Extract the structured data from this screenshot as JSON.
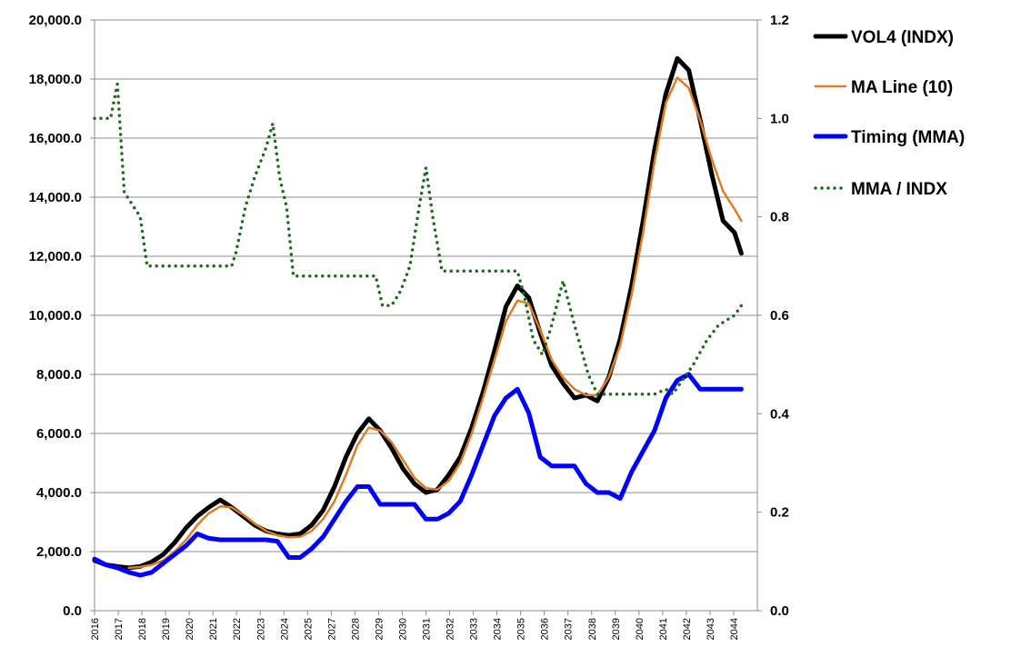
{
  "chart_data": {
    "type": "line",
    "title": "",
    "grid": true,
    "legend_position": "right",
    "x_ticks": [
      "2016",
      "2017",
      "2018",
      "2019",
      "2020",
      "2021",
      "2022",
      "2023",
      "2024",
      "2025",
      "2027",
      "2028",
      "2029",
      "2030",
      "2031",
      "2032",
      "2033",
      "2034",
      "2035",
      "2036",
      "2037",
      "2038",
      "2039",
      "2040",
      "2041",
      "2042",
      "2043",
      "2044"
    ],
    "y_left": {
      "min": 0,
      "max": 20000,
      "ticks": [
        "0.0",
        "2,000.0",
        "4,000.0",
        "6,000.0",
        "8,000.0",
        "10,000.0",
        "12,000.0",
        "14,000.0",
        "16,000.0",
        "18,000.0",
        "20,000.0"
      ]
    },
    "y_right": {
      "min": 0,
      "max": 1.2,
      "ticks": [
        "0.0",
        "0.2",
        "0.4",
        "0.6",
        "0.8",
        "1.0",
        "1.2"
      ]
    },
    "series": [
      {
        "name": "VOL4 (INDX)",
        "axis": "left",
        "style": "thick",
        "color": "#000000",
        "points": [
          [
            2016.0,
            1700
          ],
          [
            2016.5,
            1550
          ],
          [
            2017.0,
            1500
          ],
          [
            2017.5,
            1450
          ],
          [
            2018.0,
            1500
          ],
          [
            2018.5,
            1650
          ],
          [
            2019.0,
            1900
          ],
          [
            2019.5,
            2300
          ],
          [
            2020.0,
            2800
          ],
          [
            2020.5,
            3200
          ],
          [
            2021.0,
            3500
          ],
          [
            2021.5,
            3750
          ],
          [
            2022.0,
            3500
          ],
          [
            2022.5,
            3200
          ],
          [
            2023.0,
            2900
          ],
          [
            2023.5,
            2700
          ],
          [
            2024.0,
            2600
          ],
          [
            2024.5,
            2550
          ],
          [
            2025.0,
            2600
          ],
          [
            2025.5,
            2900
          ],
          [
            2026.0,
            3400
          ],
          [
            2026.5,
            4200
          ],
          [
            2027.0,
            5200
          ],
          [
            2027.5,
            6000
          ],
          [
            2028.0,
            6500
          ],
          [
            2028.5,
            6100
          ],
          [
            2029.0,
            5500
          ],
          [
            2029.5,
            4800
          ],
          [
            2030.0,
            4300
          ],
          [
            2030.5,
            4000
          ],
          [
            2031.0,
            4100
          ],
          [
            2031.5,
            4600
          ],
          [
            2032.0,
            5200
          ],
          [
            2032.5,
            6200
          ],
          [
            2033.0,
            7400
          ],
          [
            2033.5,
            8800
          ],
          [
            2034.0,
            10300
          ],
          [
            2034.5,
            11000
          ],
          [
            2035.0,
            10600
          ],
          [
            2035.5,
            9400
          ],
          [
            2036.0,
            8300
          ],
          [
            2036.5,
            7700
          ],
          [
            2037.0,
            7200
          ],
          [
            2037.5,
            7300
          ],
          [
            2038.0,
            7100
          ],
          [
            2038.5,
            7900
          ],
          [
            2039.0,
            9200
          ],
          [
            2039.5,
            11000
          ],
          [
            2040.0,
            13200
          ],
          [
            2040.5,
            15600
          ],
          [
            2041.0,
            17500
          ],
          [
            2041.5,
            18700
          ],
          [
            2042.0,
            18300
          ],
          [
            2042.5,
            16600
          ],
          [
            2043.0,
            14800
          ],
          [
            2043.5,
            13200
          ],
          [
            2044.0,
            12800
          ],
          [
            2044.3,
            12100
          ]
        ]
      },
      {
        "name": "MA Line (10)",
        "axis": "left",
        "style": "thin",
        "color": "#e07a24",
        "points": [
          [
            2017.5,
            1450
          ],
          [
            2018.0,
            1480
          ],
          [
            2018.5,
            1550
          ],
          [
            2019.0,
            1700
          ],
          [
            2019.5,
            2000
          ],
          [
            2020.0,
            2400
          ],
          [
            2020.5,
            2900
          ],
          [
            2021.0,
            3300
          ],
          [
            2021.5,
            3530
          ],
          [
            2022.0,
            3500
          ],
          [
            2022.5,
            3250
          ],
          [
            2023.0,
            2950
          ],
          [
            2023.5,
            2700
          ],
          [
            2024.0,
            2550
          ],
          [
            2024.5,
            2480
          ],
          [
            2025.0,
            2500
          ],
          [
            2025.5,
            2700
          ],
          [
            2026.0,
            3100
          ],
          [
            2026.5,
            3700
          ],
          [
            2027.0,
            4600
          ],
          [
            2027.5,
            5600
          ],
          [
            2028.0,
            6200
          ],
          [
            2028.5,
            6100
          ],
          [
            2029.0,
            5700
          ],
          [
            2029.5,
            5100
          ],
          [
            2030.0,
            4500
          ],
          [
            2030.5,
            4150
          ],
          [
            2031.0,
            4100
          ],
          [
            2031.5,
            4400
          ],
          [
            2032.0,
            5000
          ],
          [
            2032.5,
            6000
          ],
          [
            2033.0,
            7200
          ],
          [
            2033.5,
            8500
          ],
          [
            2034.0,
            9800
          ],
          [
            2034.5,
            10500
          ],
          [
            2035.0,
            10400
          ],
          [
            2035.5,
            9500
          ],
          [
            2036.0,
            8500
          ],
          [
            2036.5,
            7900
          ],
          [
            2037.0,
            7500
          ],
          [
            2037.5,
            7300
          ],
          [
            2038.0,
            7300
          ],
          [
            2038.5,
            7900
          ],
          [
            2039.0,
            9000
          ],
          [
            2039.5,
            10700
          ],
          [
            2040.0,
            12800
          ],
          [
            2040.5,
            15200
          ],
          [
            2041.0,
            17200
          ],
          [
            2041.5,
            18050
          ],
          [
            2042.0,
            17700
          ],
          [
            2042.5,
            16600
          ],
          [
            2043.0,
            15300
          ],
          [
            2043.5,
            14200
          ],
          [
            2044.0,
            13600
          ],
          [
            2044.3,
            13200
          ]
        ]
      },
      {
        "name": "Timing (MMA)",
        "axis": "left",
        "style": "thick",
        "color": "#0000ff",
        "points": [
          [
            2016.0,
            1750
          ],
          [
            2016.5,
            1550
          ],
          [
            2017.0,
            1450
          ],
          [
            2017.5,
            1300
          ],
          [
            2018.0,
            1200
          ],
          [
            2018.5,
            1300
          ],
          [
            2019.0,
            1600
          ],
          [
            2019.5,
            1900
          ],
          [
            2020.0,
            2200
          ],
          [
            2020.5,
            2600
          ],
          [
            2021.0,
            2450
          ],
          [
            2021.5,
            2400
          ],
          [
            2022.0,
            2400
          ],
          [
            2022.5,
            2400
          ],
          [
            2023.0,
            2400
          ],
          [
            2023.5,
            2400
          ],
          [
            2024.0,
            2350
          ],
          [
            2024.5,
            1800
          ],
          [
            2025.0,
            1800
          ],
          [
            2025.5,
            2100
          ],
          [
            2026.0,
            2500
          ],
          [
            2026.5,
            3100
          ],
          [
            2027.0,
            3700
          ],
          [
            2027.5,
            4200
          ],
          [
            2028.0,
            4200
          ],
          [
            2028.5,
            3600
          ],
          [
            2029.0,
            3600
          ],
          [
            2029.5,
            3600
          ],
          [
            2030.0,
            3600
          ],
          [
            2030.5,
            3100
          ],
          [
            2031.0,
            3100
          ],
          [
            2031.5,
            3300
          ],
          [
            2032.0,
            3700
          ],
          [
            2032.5,
            4600
          ],
          [
            2033.0,
            5600
          ],
          [
            2033.5,
            6600
          ],
          [
            2034.0,
            7200
          ],
          [
            2034.5,
            7500
          ],
          [
            2035.0,
            6700
          ],
          [
            2035.5,
            5200
          ],
          [
            2036.0,
            4900
          ],
          [
            2036.5,
            4900
          ],
          [
            2037.0,
            4900
          ],
          [
            2037.5,
            4300
          ],
          [
            2038.0,
            4000
          ],
          [
            2038.5,
            4000
          ],
          [
            2039.0,
            3800
          ],
          [
            2039.5,
            4700
          ],
          [
            2040.0,
            5400
          ],
          [
            2040.5,
            6100
          ],
          [
            2041.0,
            7200
          ],
          [
            2041.5,
            7800
          ],
          [
            2042.0,
            8000
          ],
          [
            2042.5,
            7500
          ],
          [
            2043.0,
            7500
          ],
          [
            2044.3,
            7500
          ]
        ]
      },
      {
        "name": "MMA / INDX",
        "axis": "right",
        "style": "dotted",
        "color": "#1d6b1d",
        "points": [
          [
            2016.0,
            1.0
          ],
          [
            2016.7,
            1.0
          ],
          [
            2017.0,
            1.07
          ],
          [
            2017.3,
            0.85
          ],
          [
            2018.0,
            0.8
          ],
          [
            2018.3,
            0.7
          ],
          [
            2019.5,
            0.7
          ],
          [
            2020.5,
            0.7
          ],
          [
            2021.5,
            0.7
          ],
          [
            2022.0,
            0.7
          ],
          [
            2022.2,
            0.73
          ],
          [
            2022.6,
            0.82
          ],
          [
            2023.0,
            0.88
          ],
          [
            2023.5,
            0.94
          ],
          [
            2023.8,
            0.99
          ],
          [
            2024.1,
            0.88
          ],
          [
            2024.4,
            0.82
          ],
          [
            2024.7,
            0.68
          ],
          [
            2025.5,
            0.68
          ],
          [
            2026.5,
            0.68
          ],
          [
            2027.5,
            0.68
          ],
          [
            2028.3,
            0.68
          ],
          [
            2028.6,
            0.62
          ],
          [
            2029.0,
            0.62
          ],
          [
            2029.4,
            0.65
          ],
          [
            2029.8,
            0.7
          ],
          [
            2030.2,
            0.82
          ],
          [
            2030.5,
            0.9
          ],
          [
            2030.8,
            0.8
          ],
          [
            2031.2,
            0.69
          ],
          [
            2032.0,
            0.69
          ],
          [
            2033.0,
            0.69
          ],
          [
            2034.0,
            0.69
          ],
          [
            2034.5,
            0.69
          ],
          [
            2034.8,
            0.64
          ],
          [
            2035.2,
            0.55
          ],
          [
            2035.6,
            0.52
          ],
          [
            2036.0,
            0.58
          ],
          [
            2036.5,
            0.67
          ],
          [
            2037.0,
            0.58
          ],
          [
            2037.3,
            0.53
          ],
          [
            2037.6,
            0.48
          ],
          [
            2038.0,
            0.44
          ],
          [
            2039.0,
            0.44
          ],
          [
            2040.0,
            0.44
          ],
          [
            2040.5,
            0.44
          ],
          [
            2041.0,
            0.45
          ],
          [
            2041.3,
            0.44
          ],
          [
            2041.6,
            0.46
          ],
          [
            2042.2,
            0.5
          ],
          [
            2042.8,
            0.55
          ],
          [
            2043.3,
            0.58
          ],
          [
            2044.0,
            0.6
          ],
          [
            2044.3,
            0.62
          ]
        ]
      }
    ]
  }
}
